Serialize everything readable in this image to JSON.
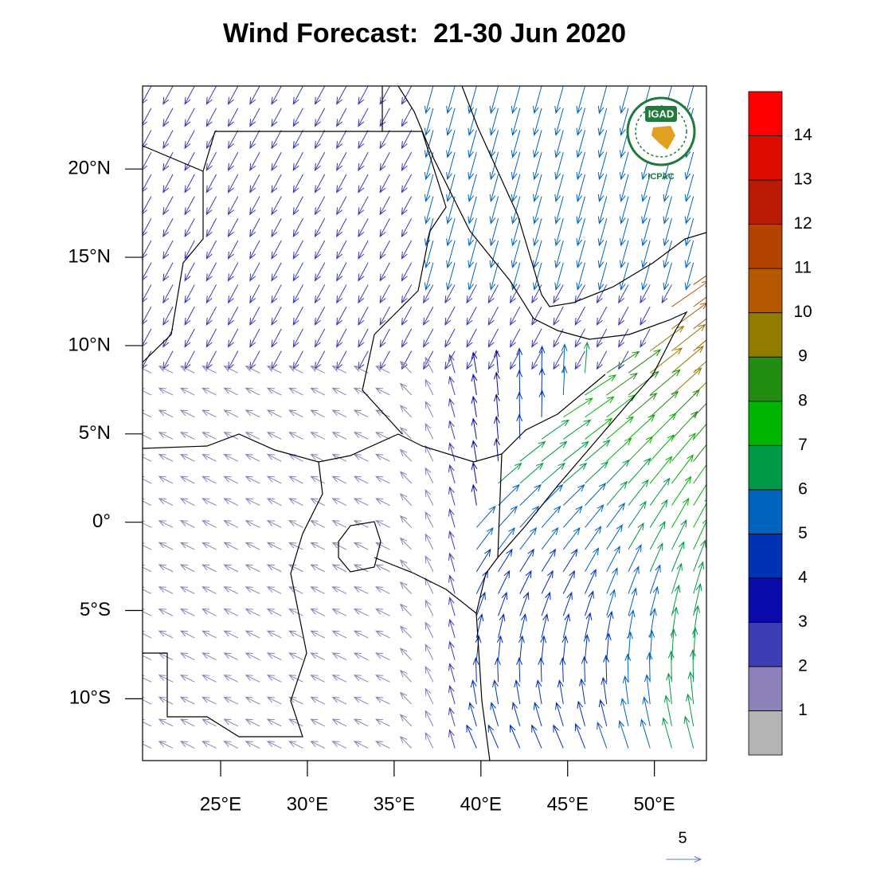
{
  "title": "Wind Forecast:  21-30 Jun 2020",
  "map": {
    "lon_range": [
      20.5,
      53
    ],
    "lat_range": [
      -13.5,
      24.7
    ],
    "lon_ticks": [
      {
        "value": 25,
        "label": "25°E"
      },
      {
        "value": 30,
        "label": "30°E"
      },
      {
        "value": 35,
        "label": "35°E"
      },
      {
        "value": 40,
        "label": "40°E"
      },
      {
        "value": 45,
        "label": "45°E"
      },
      {
        "value": 50,
        "label": "50°E"
      }
    ],
    "lat_ticks": [
      {
        "value": 20,
        "label": "20°N"
      },
      {
        "value": 15,
        "label": "15°N"
      },
      {
        "value": 10,
        "label": "10°N"
      },
      {
        "value": 5,
        "label": "5°N"
      },
      {
        "value": 0,
        "label": "0°"
      },
      {
        "value": -5,
        "label": "5°S"
      },
      {
        "value": -10,
        "label": "10°S"
      }
    ]
  },
  "colorbar": {
    "levels": [
      1,
      2,
      3,
      4,
      5,
      6,
      7,
      8,
      9,
      10,
      11,
      12,
      13,
      14
    ],
    "colors": [
      "#b4b4b4",
      "#8c82b9",
      "#3c3cb4",
      "#0a0aaa",
      "#0032b4",
      "#0064be",
      "#009a46",
      "#00b400",
      "#228b11",
      "#917b00",
      "#b55800",
      "#b34400",
      "#b81a05",
      "#dd0a00",
      "#ff0000"
    ]
  },
  "reference_vector": {
    "magnitude": 5
  },
  "logo": {
    "name": "IGAD",
    "org": "ICPAC"
  }
}
